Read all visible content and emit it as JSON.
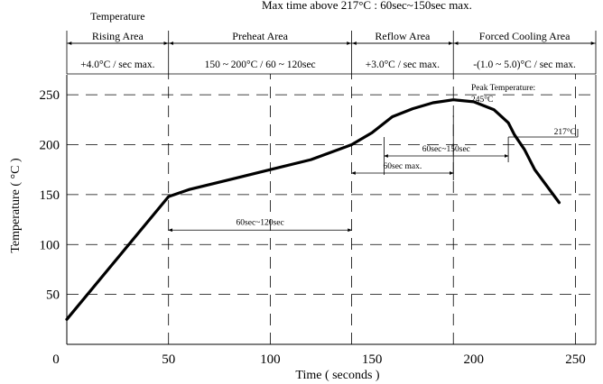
{
  "top_note": "Max time above 217°C  : 60sec~150sec max.",
  "chart_data": {
    "type": "line",
    "xlabel": "Time ( seconds )",
    "ylabel": "Temperature ( °C )",
    "xlim": [
      0,
      260
    ],
    "ylim": [
      0,
      270
    ],
    "x_ticks": [
      "0",
      "50",
      "100",
      "150",
      "200",
      "250"
    ],
    "y_ticks": [
      "50",
      "100",
      "150",
      "200",
      "250"
    ],
    "grid": "dashed",
    "series": [
      {
        "x": [
          0,
          50,
          60,
          80,
          100,
          120,
          140,
          150,
          160,
          170,
          180,
          190,
          200,
          210,
          217,
          220,
          225,
          230,
          242
        ],
        "y": [
          25,
          148,
          155,
          165,
          175,
          185,
          200,
          212,
          228,
          236,
          242,
          245,
          243,
          235,
          222,
          210,
          195,
          175,
          142
        ]
      }
    ],
    "zones": [
      {
        "name": "Temperature Rising Area",
        "line1": "Temperature",
        "line2": "Rising Area",
        "rate": "+4.0°C / sec max.",
        "x_start": 0,
        "x_end": 50
      },
      {
        "name": "Preheat Area",
        "line1": "",
        "line2": "Preheat Area",
        "rate": "150 ~ 200°C / 60 ~ 120sec",
        "x_start": 50,
        "x_end": 140
      },
      {
        "name": "Reflow Area",
        "line1": "",
        "line2": "Reflow Area",
        "rate": "+3.0°C / sec max.",
        "x_start": 140,
        "x_end": 190
      },
      {
        "name": "Forced Cooling Area",
        "line1": "",
        "line2": "Forced Cooling Area",
        "rate": "-(1.0 ~ 5.0)°C / sec max.",
        "x_start": 190,
        "x_end": 260
      }
    ],
    "annotations": [
      {
        "text": "60sec~120sec",
        "x_start": 50,
        "x_end": 140,
        "y": 100
      },
      {
        "text": "60sec~150sec",
        "x_start": 156,
        "x_end": 217,
        "y": 200
      },
      {
        "text": "60sec max.",
        "x_start": 140,
        "x_end": 190,
        "y": 180
      },
      {
        "text": "217°C",
        "y": 217
      },
      {
        "text_line1": "Peak Temperature:",
        "text_line2": "245°C",
        "x": 190,
        "y": 245
      }
    ]
  }
}
